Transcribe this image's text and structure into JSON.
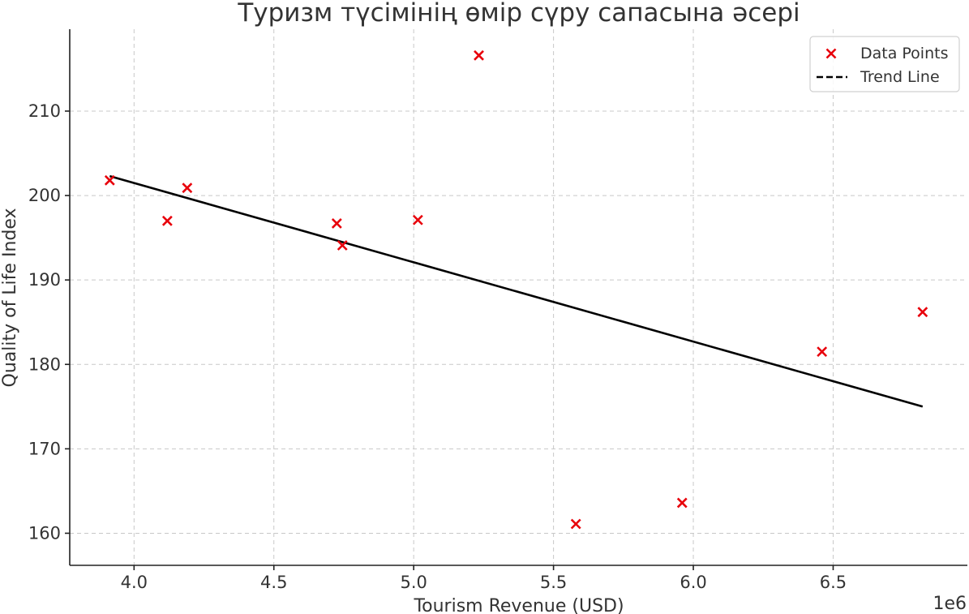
{
  "chart_data": {
    "type": "scatter",
    "title": "Туризм түсімінің өмір сүру сапасына әсері",
    "xlabel": "Tourism Revenue (USD)",
    "ylabel": "Quality of Life Index",
    "x_offset_label": "1e6",
    "xlim": [
      3.77,
      6.98
    ],
    "ylim": [
      156.2,
      219.7
    ],
    "x_ticks": [
      4.0,
      4.5,
      5.0,
      5.5,
      6.0,
      6.5
    ],
    "x_tick_labels": [
      "4.0",
      "4.5",
      "5.0",
      "5.5",
      "6.0",
      "6.5"
    ],
    "y_ticks": [
      160,
      170,
      180,
      190,
      200,
      210
    ],
    "y_tick_labels": [
      "160",
      "170",
      "180",
      "190",
      "200",
      "210"
    ],
    "grid": true,
    "legend_position": "top-right",
    "series": [
      {
        "name": "Data Points",
        "kind": "scatter",
        "marker": "x",
        "color": "#e8000b",
        "points": [
          [
            3.913,
            201.8
          ],
          [
            4.119,
            197.0
          ],
          [
            4.19,
            200.9
          ],
          [
            4.725,
            196.7
          ],
          [
            4.745,
            194.1
          ],
          [
            5.015,
            197.1
          ],
          [
            5.233,
            216.6
          ],
          [
            5.58,
            161.1
          ],
          [
            5.96,
            163.6
          ],
          [
            6.46,
            181.5
          ],
          [
            6.82,
            186.2
          ]
        ]
      },
      {
        "name": "Trend Line",
        "kind": "line",
        "style": "dashed",
        "color": "#000000",
        "points": [
          [
            3.913,
            202.3
          ],
          [
            6.82,
            175.0
          ]
        ]
      }
    ]
  }
}
